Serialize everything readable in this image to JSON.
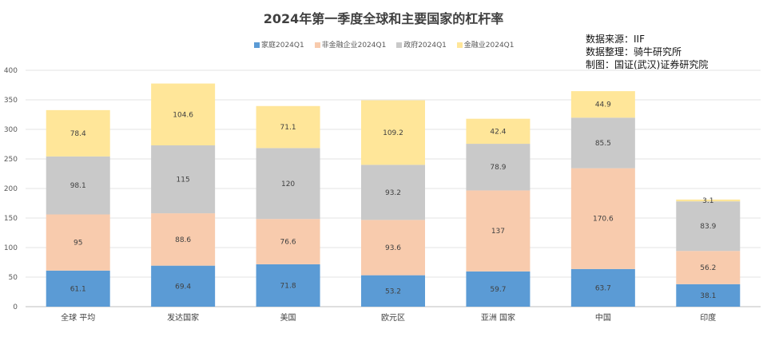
{
  "chart_data": {
    "type": "bar",
    "stacked": true,
    "title": "2024年第一季度全球和主要国家的杠杆率",
    "categories": [
      "全球 平均",
      "发达国家",
      "美国",
      "欧元区",
      "亚洲 国家",
      "中国",
      "印度"
    ],
    "series": [
      {
        "name": "家庭2024Q1",
        "color": "#5B9BD5",
        "values": [
          61.1,
          69.4,
          71.8,
          53.2,
          59.7,
          63.7,
          38.1
        ]
      },
      {
        "name": "非金融企业2024Q1",
        "color": "#F8CBAD",
        "values": [
          95,
          88.6,
          76.6,
          93.6,
          137,
          170.6,
          56.2
        ]
      },
      {
        "name": "政府2024Q1",
        "color": "#C9C9C9",
        "values": [
          98.1,
          115,
          120,
          93.2,
          78.9,
          85.5,
          83.9
        ]
      },
      {
        "name": "金融业2024Q1",
        "color": "#FFE699",
        "values": [
          78.4,
          104.6,
          71.1,
          109.2,
          42.4,
          44.9,
          3.1
        ]
      }
    ],
    "ylim": [
      0,
      400
    ],
    "yticks": [
      0,
      50,
      100,
      150,
      200,
      250,
      300,
      350,
      400
    ],
    "grid": true,
    "legend_position": "top-center"
  },
  "annotations": {
    "source_line": "数据来源：IIF",
    "compiled_line": "数据整理：骑牛研究所",
    "drawn_line": "制图：国证(武汉)证券研究院"
  }
}
